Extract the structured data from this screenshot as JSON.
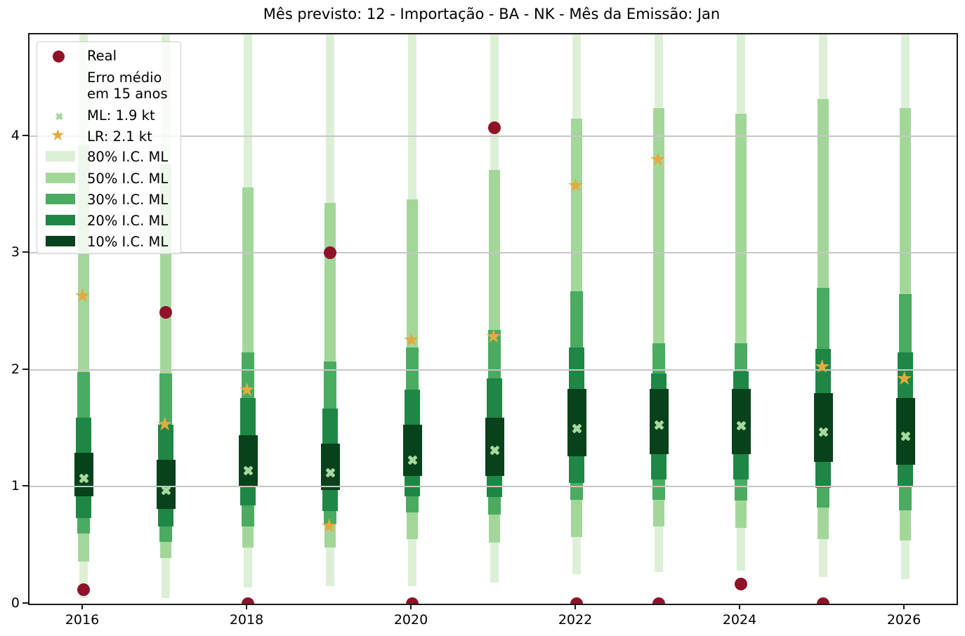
{
  "title": "Mês previsto: 12 - Importação - BA - NK - Mês da Emissão: Jan",
  "colors": {
    "real": "#8e1228",
    "lr": "#e3ab3f",
    "ml": "#a5d99f",
    "ci80": "#ddf0d7",
    "ci50": "#a3d79a",
    "ci30": "#4aab61",
    "ci20": "#1e8745",
    "ci10": "#07421c",
    "grid": "#c6c6c6",
    "axis": "#1a1a1a"
  },
  "legend": {
    "real_label": "Real",
    "error_label_line1": "Erro médio",
    "error_label_line2": "em 15 anos",
    "ml_label": "ML: 1.9 kt",
    "lr_label": "LR: 2.1 kt",
    "ci_labels": [
      "80% I.C. ML",
      "50% I.C. ML",
      "30% I.C. ML",
      "20% I.C. ML",
      "10% I.C. ML"
    ]
  },
  "chart_data": {
    "type": "bar",
    "subtype": "fan-forecast intervals with point markers",
    "title": "Mês previsto: 12 - Importação - BA - NK - Mês da Emissão: Jan",
    "xlabel": "",
    "ylabel": "",
    "unit": "kt",
    "xticks": [
      2016,
      2018,
      2020,
      2022,
      2024,
      2026
    ],
    "yticks": [
      0,
      1,
      2,
      3,
      4
    ],
    "ylim": [
      0,
      4.87
    ],
    "grid": "horizontal",
    "legend_position": "upper-left",
    "x_years": [
      2016,
      2017,
      2018,
      2019,
      2020,
      2021,
      2022,
      2023,
      2024,
      2025,
      2026
    ],
    "series": [
      {
        "year": 2016,
        "real": 0.12,
        "ml": 1.07,
        "lr": 2.63,
        "ci10": [
          0.92,
          1.29
        ],
        "ci20": [
          0.73,
          1.59
        ],
        "ci30": [
          0.6,
          1.98
        ],
        "ci50": [
          0.36,
          3.92
        ],
        "ci80": [
          0.05,
          4.95
        ]
      },
      {
        "year": 2017,
        "real": 2.49,
        "ml": 0.97,
        "lr": 1.53,
        "ci10": [
          0.81,
          1.23
        ],
        "ci20": [
          0.66,
          1.53
        ],
        "ci30": [
          0.53,
          1.97
        ],
        "ci50": [
          0.39,
          3.76
        ],
        "ci80": [
          0.05,
          4.95
        ]
      },
      {
        "year": 2018,
        "real": 0.0,
        "ml": 1.14,
        "lr": 1.82,
        "ci10": [
          1.0,
          1.44
        ],
        "ci20": [
          0.84,
          1.76
        ],
        "ci30": [
          0.66,
          2.15
        ],
        "ci50": [
          0.48,
          3.56
        ],
        "ci80": [
          0.14,
          4.95
        ]
      },
      {
        "year": 2019,
        "real": 3.0,
        "ml": 1.12,
        "lr": 0.66,
        "ci10": [
          0.97,
          1.37
        ],
        "ci20": [
          0.79,
          1.67
        ],
        "ci30": [
          0.68,
          2.07
        ],
        "ci50": [
          0.48,
          3.43
        ],
        "ci80": [
          0.15,
          4.95
        ]
      },
      {
        "year": 2020,
        "real": 0.0,
        "ml": 1.23,
        "lr": 2.25,
        "ci10": [
          1.09,
          1.53
        ],
        "ci20": [
          0.92,
          1.83
        ],
        "ci30": [
          0.78,
          2.19
        ],
        "ci50": [
          0.55,
          3.46
        ],
        "ci80": [
          0.15,
          4.95
        ]
      },
      {
        "year": 2021,
        "real": 4.07,
        "ml": 1.31,
        "lr": 2.28,
        "ci10": [
          1.09,
          1.59
        ],
        "ci20": [
          0.91,
          1.93
        ],
        "ci30": [
          0.76,
          2.34
        ],
        "ci50": [
          0.52,
          3.71
        ],
        "ci80": [
          0.18,
          4.95
        ]
      },
      {
        "year": 2022,
        "real": 0.0,
        "ml": 1.5,
        "lr": 3.57,
        "ci10": [
          1.26,
          1.84
        ],
        "ci20": [
          1.03,
          2.19
        ],
        "ci30": [
          0.89,
          2.67
        ],
        "ci50": [
          0.57,
          4.15
        ],
        "ci80": [
          0.25,
          4.95
        ]
      },
      {
        "year": 2023,
        "real": 0.0,
        "ml": 1.53,
        "lr": 3.79,
        "ci10": [
          1.28,
          1.84
        ],
        "ci20": [
          1.06,
          1.97
        ],
        "ci30": [
          0.89,
          2.23
        ],
        "ci50": [
          0.66,
          4.24
        ],
        "ci80": [
          0.27,
          4.95
        ]
      },
      {
        "year": 2024,
        "real": 0.17,
        "ml": 1.52,
        "lr": null,
        "ci10": [
          1.28,
          1.84
        ],
        "ci20": [
          1.06,
          1.99
        ],
        "ci30": [
          0.88,
          2.23
        ],
        "ci50": [
          0.65,
          4.19
        ],
        "ci80": [
          0.28,
          4.95
        ]
      },
      {
        "year": 2025,
        "real": 0.0,
        "ml": 1.47,
        "lr": 2.02,
        "ci10": [
          1.21,
          1.8
        ],
        "ci20": [
          0.99,
          2.18
        ],
        "ci30": [
          0.82,
          2.7
        ],
        "ci50": [
          0.55,
          4.32
        ],
        "ci80": [
          0.23,
          4.95
        ]
      },
      {
        "year": 2026,
        "real": null,
        "ml": 1.43,
        "lr": 1.92,
        "ci10": [
          1.19,
          1.76
        ],
        "ci20": [
          1.0,
          2.15
        ],
        "ci30": [
          0.8,
          2.65
        ],
        "ci50": [
          0.54,
          4.24
        ],
        "ci80": [
          0.21,
          4.95
        ]
      }
    ]
  }
}
